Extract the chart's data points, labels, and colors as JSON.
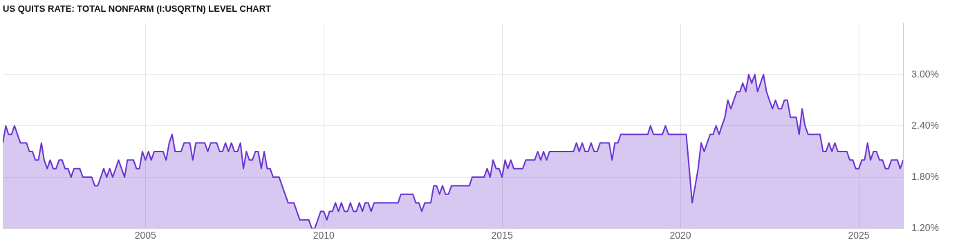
{
  "chart_data": {
    "type": "area",
    "title": "US QUITS RATE: TOTAL NONFARM (I:USQRTN) LEVEL CHART",
    "xlim": [
      "2001-01",
      "2026-04"
    ],
    "xticks": [
      "2005",
      "2010",
      "2015",
      "2020",
      "2025"
    ],
    "ylim": [
      1.2,
      3.6
    ],
    "yticks": [
      {
        "value": 1.2,
        "label": "1.20%"
      },
      {
        "value": 1.8,
        "label": "1.80%"
      },
      {
        "value": 2.4,
        "label": "2.40%"
      },
      {
        "value": 3.0,
        "label": "3.00%"
      }
    ],
    "grid": true,
    "legend": false,
    "marker": "none",
    "line_style": "solid",
    "series": [
      {
        "color": "#6a35d0",
        "x": [
          "2001-01",
          "2001-02",
          "2001-03",
          "2001-04",
          "2001-05",
          "2001-07",
          "2001-09",
          "2001-10",
          "2001-11",
          "2001-12",
          "2002-01",
          "2002-02",
          "2002-03",
          "2002-04",
          "2002-05",
          "2002-06",
          "2002-07",
          "2002-08",
          "2002-09",
          "2002-10",
          "2002-11",
          "2002-12",
          "2003-01",
          "2003-03",
          "2003-04",
          "2003-07",
          "2003-08",
          "2003-09",
          "2003-11",
          "2003-12",
          "2004-01",
          "2004-02",
          "2004-04",
          "2004-06",
          "2004-07",
          "2004-09",
          "2004-10",
          "2004-11",
          "2004-12",
          "2005-01",
          "2005-02",
          "2005-03",
          "2005-04",
          "2005-07",
          "2005-08",
          "2005-09",
          "2005-10",
          "2005-11",
          "2006-01",
          "2006-02",
          "2006-04",
          "2006-05",
          "2006-06",
          "2006-09",
          "2006-10",
          "2006-11",
          "2007-01",
          "2007-02",
          "2007-03",
          "2007-04",
          "2007-05",
          "2007-06",
          "2007-07",
          "2007-08",
          "2007-09",
          "2007-10",
          "2007-11",
          "2007-12",
          "2008-01",
          "2008-02",
          "2008-03",
          "2008-04",
          "2008-05",
          "2008-06",
          "2008-07",
          "2008-08",
          "2008-10",
          "2009-01",
          "2009-03",
          "2009-05",
          "2009-08",
          "2009-09",
          "2009-10",
          "2009-12",
          "2010-01",
          "2010-02",
          "2010-03",
          "2010-04",
          "2010-05",
          "2010-06",
          "2010-07",
          "2010-08",
          "2010-09",
          "2010-10",
          "2010-11",
          "2010-12",
          "2011-01",
          "2011-02",
          "2011-03",
          "2011-04",
          "2011-05",
          "2011-06",
          "2012-02",
          "2012-03",
          "2012-07",
          "2012-08",
          "2012-09",
          "2012-10",
          "2012-11",
          "2013-01",
          "2013-02",
          "2013-03",
          "2013-04",
          "2013-05",
          "2013-06",
          "2013-07",
          "2013-08",
          "2014-02",
          "2014-03",
          "2014-07",
          "2014-08",
          "2014-09",
          "2014-10",
          "2014-11",
          "2014-12",
          "2015-01",
          "2015-02",
          "2015-03",
          "2015-04",
          "2015-05",
          "2015-08",
          "2015-09",
          "2015-12",
          "2016-01",
          "2016-02",
          "2016-03",
          "2016-04",
          "2016-05",
          "2017-01",
          "2017-02",
          "2017-03",
          "2017-04",
          "2017-05",
          "2017-06",
          "2017-07",
          "2017-08",
          "2017-09",
          "2017-10",
          "2018-01",
          "2018-02",
          "2018-03",
          "2018-04",
          "2018-05",
          "2019-02",
          "2019-03",
          "2019-04",
          "2019-07",
          "2019-08",
          "2019-09",
          "2020-03",
          "2020-05",
          "2020-06",
          "2020-07",
          "2020-08",
          "2020-09",
          "2020-10",
          "2020-11",
          "2020-12",
          "2021-01",
          "2021-02",
          "2021-03",
          "2021-04",
          "2021-05",
          "2021-06",
          "2021-07",
          "2021-08",
          "2021-09",
          "2021-10",
          "2021-11",
          "2021-12",
          "2022-01",
          "2022-02",
          "2022-03",
          "2022-04",
          "2022-05",
          "2022-06",
          "2022-07",
          "2022-08",
          "2022-09",
          "2022-10",
          "2022-11",
          "2022-12",
          "2023-01",
          "2023-02",
          "2023-03",
          "2023-04",
          "2023-05",
          "2023-06",
          "2023-07",
          "2023-08",
          "2023-12",
          "2024-01",
          "2024-02",
          "2024-03",
          "2024-04",
          "2024-05",
          "2024-06",
          "2024-09",
          "2024-10",
          "2024-11",
          "2024-12",
          "2025-01",
          "2025-02",
          "2025-03",
          "2025-04",
          "2025-05",
          "2025-06",
          "2025-07",
          "2025-08",
          "2025-09",
          "2025-10",
          "2025-11",
          "2025-12",
          "2026-01",
          "2026-02",
          "2026-03",
          "2026-04"
        ],
        "values": [
          2.2,
          2.4,
          2.3,
          2.3,
          2.4,
          2.2,
          2.2,
          2.1,
          2.1,
          2.0,
          2.0,
          2.2,
          2.0,
          1.9,
          2.0,
          1.9,
          1.9,
          2.0,
          2.0,
          1.9,
          1.9,
          1.8,
          1.9,
          1.9,
          1.8,
          1.8,
          1.7,
          1.7,
          1.9,
          1.8,
          1.9,
          1.8,
          2.0,
          1.8,
          2.0,
          2.0,
          1.9,
          1.9,
          2.1,
          2.0,
          2.1,
          2.0,
          2.1,
          2.1,
          2.0,
          2.2,
          2.3,
          2.1,
          2.1,
          2.2,
          2.2,
          2.0,
          2.2,
          2.2,
          2.1,
          2.2,
          2.2,
          2.1,
          2.1,
          2.2,
          2.1,
          2.2,
          2.1,
          2.1,
          2.2,
          1.9,
          2.1,
          2.0,
          2.0,
          2.1,
          2.1,
          1.9,
          2.1,
          1.9,
          1.9,
          1.8,
          1.8,
          1.5,
          1.5,
          1.3,
          1.3,
          1.2,
          1.2,
          1.4,
          1.4,
          1.3,
          1.4,
          1.4,
          1.5,
          1.4,
          1.5,
          1.4,
          1.4,
          1.5,
          1.4,
          1.4,
          1.5,
          1.4,
          1.5,
          1.5,
          1.4,
          1.5,
          1.5,
          1.6,
          1.6,
          1.5,
          1.5,
          1.4,
          1.5,
          1.5,
          1.7,
          1.7,
          1.6,
          1.7,
          1.6,
          1.6,
          1.7,
          1.7,
          1.8,
          1.8,
          1.9,
          1.8,
          2.0,
          1.9,
          1.9,
          1.8,
          2.0,
          1.9,
          2.0,
          1.9,
          1.9,
          2.0,
          2.0,
          2.1,
          2.0,
          2.1,
          2.0,
          2.1,
          2.1,
          2.2,
          2.1,
          2.2,
          2.1,
          2.1,
          2.2,
          2.1,
          2.1,
          2.2,
          2.2,
          2.0,
          2.2,
          2.2,
          2.3,
          2.3,
          2.4,
          2.3,
          2.3,
          2.4,
          2.3,
          2.3,
          1.5,
          1.7,
          1.9,
          2.2,
          2.1,
          2.2,
          2.3,
          2.3,
          2.4,
          2.3,
          2.4,
          2.5,
          2.7,
          2.6,
          2.7,
          2.8,
          2.8,
          2.9,
          2.8,
          3.0,
          2.9,
          3.0,
          2.8,
          2.9,
          3.0,
          2.8,
          2.7,
          2.6,
          2.7,
          2.6,
          2.6,
          2.7,
          2.7,
          2.5,
          2.5,
          2.5,
          2.3,
          2.6,
          2.4,
          2.3,
          2.3,
          2.1,
          2.1,
          2.2,
          2.1,
          2.2,
          2.1,
          2.1,
          2.0,
          2.0,
          1.9,
          1.9,
          2.0,
          2.0,
          2.2,
          2.0,
          2.1,
          2.1,
          2.0,
          2.0,
          1.9,
          1.9,
          2.0,
          2.0,
          2.0,
          1.9,
          2.0
        ]
      }
    ]
  }
}
